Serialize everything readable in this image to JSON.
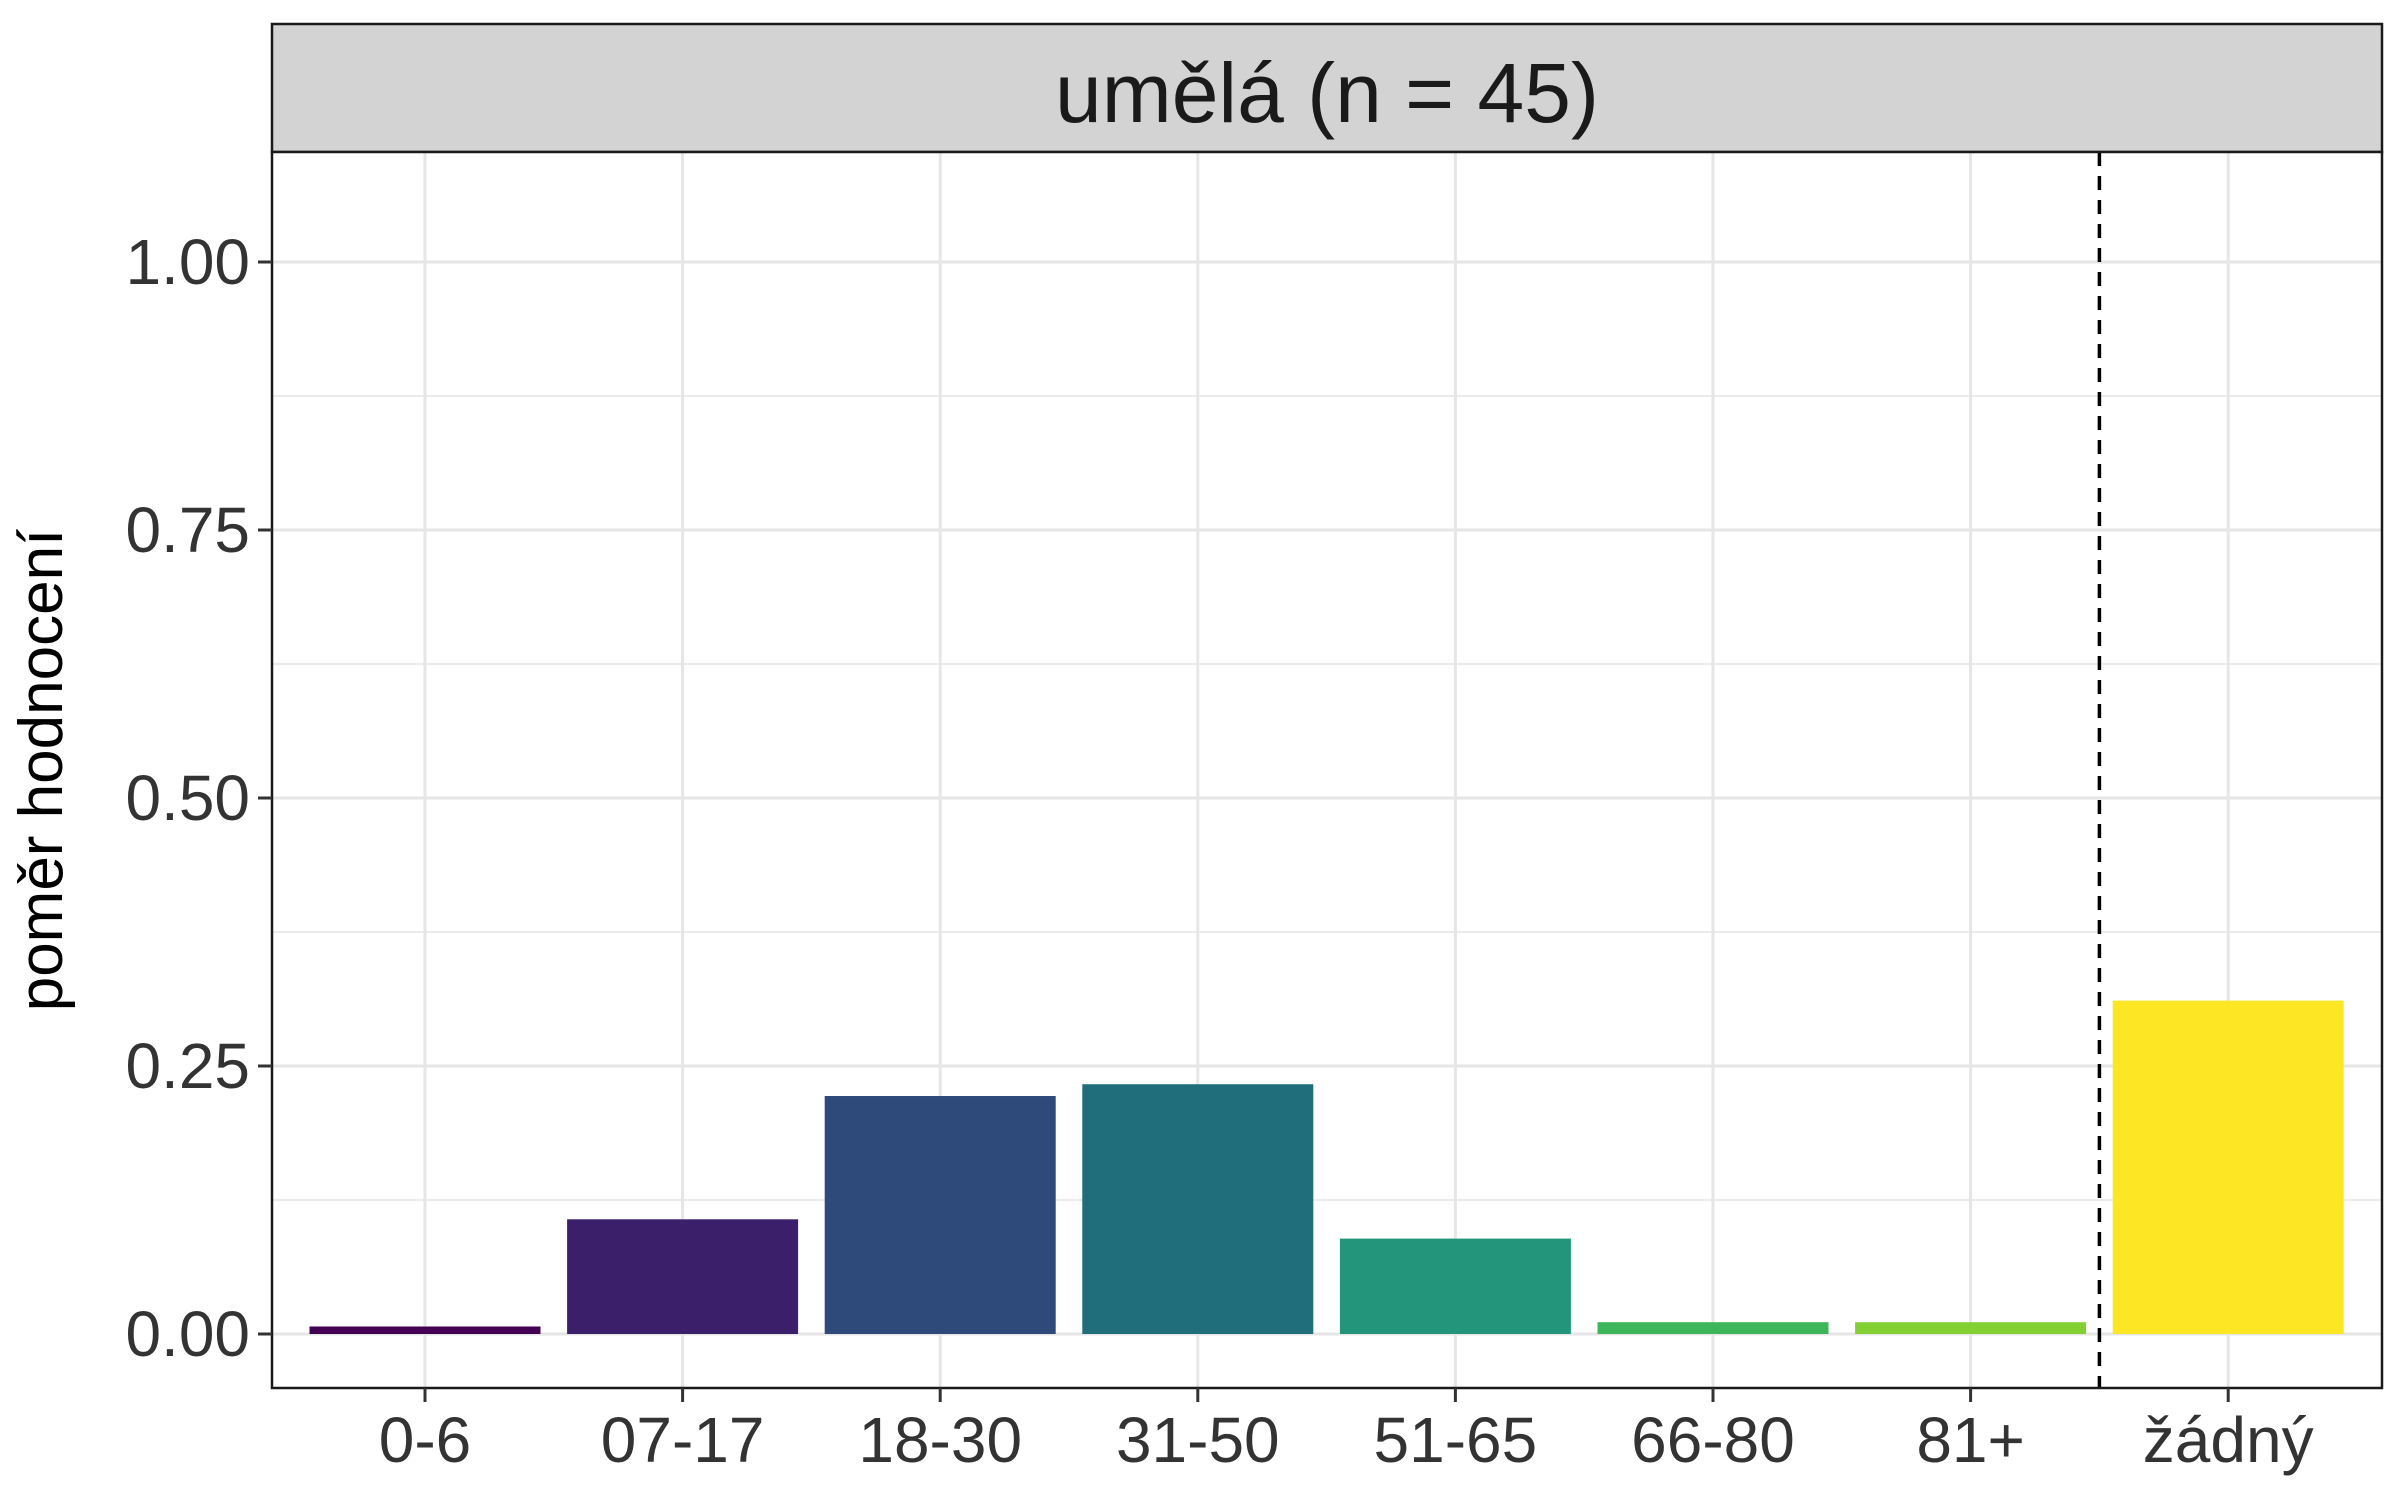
{
  "chart_data": {
    "type": "bar",
    "facet_title": "umělá (n = 45)",
    "xlabel": "",
    "ylabel": "poměr hodnocení",
    "ylim": [
      -0.05,
      1.1
    ],
    "y_ticks": [
      0.0,
      0.25,
      0.5,
      0.75,
      1.0
    ],
    "y_tick_labels": [
      "0.00",
      "0.25",
      "0.50",
      "0.75",
      "1.00"
    ],
    "y_minor_ticks": [
      0.125,
      0.375,
      0.625,
      0.875
    ],
    "categories": [
      "0-6",
      "07-17",
      "18-30",
      "31-50",
      "51-65",
      "66-80",
      "81+",
      "žádný"
    ],
    "values": [
      0.007,
      0.107,
      0.222,
      0.233,
      0.089,
      0.011,
      0.011,
      0.311
    ],
    "colors": [
      "#440154",
      "#3b1f6b",
      "#2d4a7b",
      "#206d7c",
      "#22957b",
      "#3db559",
      "#83d034",
      "#fde725"
    ],
    "separator_after_index": 6,
    "grid": true,
    "legend": "none"
  }
}
